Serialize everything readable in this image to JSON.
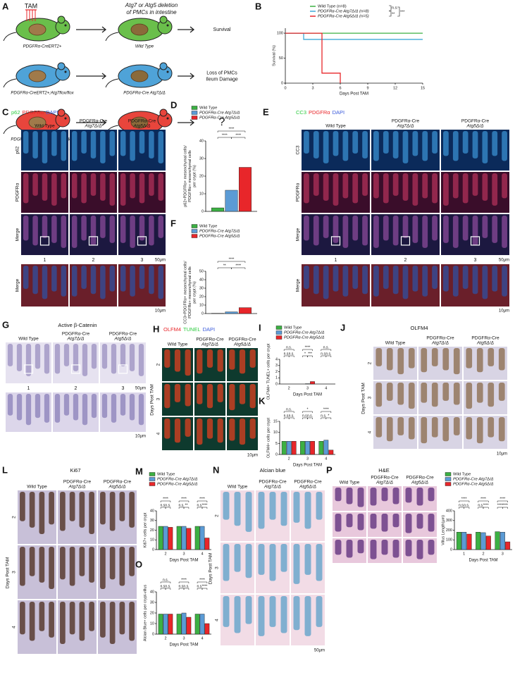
{
  "figure": {
    "A": {
      "label": "A",
      "tam": "TAM",
      "title": [
        "Atg7 or Atg5 deletion",
        "of PMCs in intestine"
      ],
      "rows": [
        {
          "genotype": "PDGFRα-CreERT2+",
          "result": "Wild Type",
          "outcome": [
            "Survival"
          ]
        },
        {
          "genotype": "PDGFRα-CreERT2+;Atg7flox/flox",
          "result": "PDGFRα-Cre Atg7Δ/Δ",
          "outcome": [
            "Loss of PMCs",
            "Ileum Damage"
          ]
        },
        {
          "genotype": "PDGFRα-CreERT2+;Atg5flox/flox",
          "result": "PDGFRα-Cre Atg5Δ/Δ",
          "outcome": [
            "?"
          ]
        }
      ]
    },
    "C": {
      "label": "C",
      "stain": [
        "p62",
        "PDGFRα",
        "DAPI"
      ],
      "stain_colors": [
        "#2ecc40",
        "#e8262a",
        "#3b5bdb"
      ],
      "columns": [
        [
          "Wild Type"
        ],
        [
          "PDGFRα-Cre",
          "Atg7Δ/Δ"
        ],
        [
          "PDGFRα-Cre",
          "Atg5Δ/Δ"
        ]
      ],
      "rows": [
        "p62",
        "PDGFRα",
        "Merge"
      ],
      "insets": [
        "1",
        "2",
        "3"
      ],
      "zoom_row": "Merge",
      "scale_bars": [
        "50μm",
        "10μm"
      ]
    },
    "E": {
      "label": "E",
      "stain": [
        "CC3",
        "PDGFRα",
        "DAPI"
      ],
      "stain_colors": [
        "#2ecc40",
        "#e8262a",
        "#3b5bdb"
      ],
      "columns": [
        [
          "Wild Type"
        ],
        [
          "PDGFRα-Cre",
          "Atg7Δ/Δ"
        ],
        [
          "PDGFRα-Cre",
          "Atg5Δ/Δ"
        ]
      ],
      "rows": [
        "CC3",
        "PDGFRα",
        "Merge"
      ],
      "insets": [
        "1",
        "2",
        "3"
      ],
      "zoom_row": "Merge",
      "scale_bars": [
        "50μm",
        "10μm"
      ]
    },
    "G": {
      "label": "G",
      "stain": "Active β-Catenin",
      "columns": [
        [
          "Wild Type"
        ],
        [
          "PDGFRα-Cre",
          "Atg7Δ/Δ"
        ],
        [
          "PDGFRα-Cre",
          "Atg5Δ/Δ"
        ]
      ],
      "insets": [
        "1",
        "2",
        "3"
      ],
      "scale_bars": [
        "50μm",
        "10μm"
      ]
    },
    "H": {
      "label": "H",
      "stain": [
        "OLFM4",
        "TUNEL",
        "DAPI"
      ],
      "stain_colors": [
        "#e8262a",
        "#2ecc40",
        "#3b5bdb"
      ],
      "columns": [
        [
          "Wild Type"
        ],
        [
          "PDGFRα-Cre",
          "Atg7Δ/Δ"
        ],
        [
          "PDGFRα-Cre",
          "Atg5Δ/Δ"
        ]
      ],
      "rows": [
        "2",
        "3",
        "4"
      ],
      "rows_title": "Days Post TAM",
      "scale_bars": [
        "10μm"
      ]
    },
    "J": {
      "label": "J",
      "stain": "OLFM4",
      "columns": [
        [
          "Wild Type"
        ],
        [
          "PDGFRα-Cre",
          "Atg7Δ/Δ"
        ],
        [
          "PDGFRα-Cre",
          "Atg5Δ/Δ"
        ]
      ],
      "rows": [
        "2",
        "3",
        "4"
      ],
      "rows_title": "Days Post TAM",
      "scale_bars": [
        "10μm"
      ]
    },
    "L": {
      "label": "L",
      "stain": "Ki67",
      "columns": [
        [
          "Wild Type"
        ],
        [
          "PDGFRα-Cre",
          "Atg7Δ/Δ"
        ],
        [
          "PDGFRα-Cre",
          "Atg5Δ/Δ"
        ]
      ],
      "rows": [
        "2",
        "3",
        "4"
      ],
      "rows_title": "Days Post TAM"
    },
    "N": {
      "label": "N",
      "stain": "Alcian blue",
      "columns": [
        [
          "Wild Type"
        ],
        [
          "PDGFRα-Cre",
          "Atg7Δ/Δ"
        ],
        [
          "PDGFRα-Cre",
          "Atg5Δ/Δ"
        ]
      ],
      "rows": [
        "2",
        "3",
        "4"
      ],
      "rows_title": "Days Post TAM",
      "scale_bars": [
        "50μm"
      ]
    },
    "P": {
      "label": "P",
      "stain": "H&E",
      "columns": [
        [
          "Wild Type"
        ],
        [
          "PDGFRα-Cre",
          "Atg7Δ/Δ"
        ],
        [
          "PDGFRα-Cre",
          "Atg5Δ/Δ"
        ]
      ],
      "tile_rows": 3
    }
  },
  "chart_data": [
    {
      "label": "B",
      "type": "line",
      "xlabel": "Days Post TAM",
      "ylabel": [
        "Survival (%)"
      ],
      "xlim": [
        0,
        15
      ],
      "xticks": [
        0,
        3,
        6,
        9,
        12,
        15
      ],
      "ylim": [
        0,
        110
      ],
      "yticks": [
        0,
        50,
        100
      ],
      "series": [
        {
          "name": "Wild Type (n=8)",
          "color": "#3cb043",
          "x": [
            0,
            15
          ],
          "values": [
            100,
            100
          ]
        },
        {
          "name": "PDGFRα-Cre Atg7Δ/Δ (n=8)",
          "color": "#3fa9d8",
          "x": [
            0,
            2,
            2,
            15
          ],
          "values": [
            100,
            100,
            87.5,
            87.5
          ]
        },
        {
          "name": "PDGFRα-Cre Atg5Δ/Δ (n=5)",
          "color": "#e8262a",
          "x": [
            0,
            4,
            4,
            6,
            6
          ],
          "values": [
            100,
            100,
            20,
            20,
            0
          ]
        }
      ],
      "annotations": [
        "n.s.",
        "**",
        "***"
      ]
    },
    {
      "label": "D",
      "type": "bar",
      "legend": "top",
      "ylabel": [
        "p62+PDGFRα+ mesenchymal cells/",
        "PDGFRα+ mesenchymal cells",
        "per crypt (%)"
      ],
      "categories": [
        null
      ],
      "ylim": [
        0,
        40
      ],
      "yticks": [
        0,
        10,
        20,
        30,
        40
      ],
      "series": [
        {
          "name": "Wild Type",
          "color": "#3cb043",
          "values": [
            2
          ]
        },
        {
          "name": "PDGFRα-Cre Atg7Δ/Δ",
          "color": "#5b9bd5",
          "values": [
            12
          ]
        },
        {
          "name": "PDGFRα-Cre Atg5Δ/Δ",
          "color": "#e8262a",
          "values": [
            25
          ]
        }
      ],
      "annotations": [
        "****",
        "****",
        "****"
      ]
    },
    {
      "label": "F",
      "type": "bar",
      "legend": "top",
      "ylabel": [
        "CC3+PDGFRα+ mesenchymal cells/",
        "PDGFRα+ mesenchymal cells",
        "per crypt (%)"
      ],
      "categories": [
        null
      ],
      "ylim": [
        0,
        50
      ],
      "yticks": [
        0,
        10,
        20,
        30,
        40,
        50
      ],
      "series": [
        {
          "name": "Wild Type",
          "color": "#3cb043",
          "values": [
            0.3
          ]
        },
        {
          "name": "PDGFRα-Cre Atg7Δ/Δ",
          "color": "#5b9bd5",
          "values": [
            2
          ]
        },
        {
          "name": "PDGFRα-Cre Atg5Δ/Δ",
          "color": "#e8262a",
          "values": [
            7
          ]
        }
      ],
      "annotations": [
        "**",
        "****",
        "****"
      ]
    },
    {
      "label": "I",
      "type": "bar",
      "legend": "top",
      "xlabel": "Days Post TAM",
      "ylabel": [
        "OLFM4+ TUNEL+ cells per crypt"
      ],
      "categories": [
        "2",
        "3",
        "4"
      ],
      "ylim": [
        0,
        4
      ],
      "yticks": [
        0,
        1,
        2,
        3,
        4
      ],
      "series": [
        {
          "name": "Wild Type",
          "color": "#3cb043",
          "values": [
            0,
            0,
            0
          ]
        },
        {
          "name": "PDGFRα-Cre Atg7Δ/Δ",
          "color": "#5b9bd5",
          "values": [
            0,
            0.05,
            0
          ]
        },
        {
          "name": "PDGFRα-Cre Atg5Δ/Δ",
          "color": "#e8262a",
          "values": [
            0,
            0.4,
            0
          ]
        }
      ],
      "annotations": [
        "n.s.",
        "n.s.",
        "n.s.",
        "*",
        "***",
        "****",
        "n.s.",
        "n.s.",
        "n.s."
      ]
    },
    {
      "label": "K",
      "type": "bar",
      "xlabel": "Days Post TAM",
      "ylabel": [
        "OLFM4+ cells per crypt"
      ],
      "categories": [
        "2",
        "3",
        "4"
      ],
      "ylim": [
        0,
        15
      ],
      "yticks": [
        0,
        5,
        10,
        15
      ],
      "series": [
        {
          "color": "#3cb043",
          "values": [
            6,
            6,
            6
          ]
        },
        {
          "color": "#5b9bd5",
          "values": [
            6,
            6,
            6.5
          ]
        },
        {
          "color": "#e8262a",
          "values": [
            6,
            6,
            2
          ]
        }
      ],
      "annotations": [
        "n.s.",
        "n.s.",
        "n.s.",
        "n.s.",
        "n.s.",
        "*",
        "n.s.",
        "*",
        "****"
      ]
    },
    {
      "label": "M",
      "type": "bar",
      "legend": "top",
      "xlabel": "Days Post TAM",
      "ylabel": [
        "Ki67+ cells per crypt"
      ],
      "categories": [
        "2",
        "3",
        "4"
      ],
      "ylim": [
        0,
        40
      ],
      "yticks": [
        0,
        10,
        20,
        30,
        40
      ],
      "series": [
        {
          "name": "Wild Type",
          "color": "#3cb043",
          "values": [
            24,
            24,
            24
          ]
        },
        {
          "name": "PDGFRα-Cre Atg7Δ/Δ",
          "color": "#5b9bd5",
          "values": [
            24,
            24,
            24
          ]
        },
        {
          "name": "PDGFRα-Cre Atg5Δ/Δ",
          "color": "#e8262a",
          "values": [
            23,
            22,
            12
          ]
        }
      ],
      "annotations": [
        "n.s.",
        "n.s.",
        "****",
        "n.s.",
        "**",
        "****",
        "n.s.",
        "****",
        "****"
      ]
    },
    {
      "label": "O",
      "type": "bar",
      "xlabel": "Days Post TAM",
      "ylabel": [
        "Alcian Blue+ cells per crypt-villus"
      ],
      "categories": [
        "2",
        "3",
        "4"
      ],
      "ylim": [
        0,
        40
      ],
      "yticks": [
        0,
        10,
        20,
        30,
        40
      ],
      "series": [
        {
          "color": "#3cb043",
          "values": [
            19,
            19,
            19
          ]
        },
        {
          "color": "#5b9bd5",
          "values": [
            19,
            20,
            19
          ]
        },
        {
          "color": "#e8262a",
          "values": [
            19,
            16,
            10
          ]
        }
      ],
      "annotations": [
        "n.s.",
        "n.s.",
        "n.s.",
        "n.s.",
        "n.s.",
        "****",
        "n.s.",
        "****",
        "****"
      ]
    },
    {
      "type": "bar",
      "legend": "top",
      "xlabel": "Days Post TAM",
      "ylabel": [
        "Villus Length(μm)"
      ],
      "categories": [
        "1",
        "2",
        "3"
      ],
      "ylim": [
        0,
        400
      ],
      "yticks": [
        0,
        100,
        200,
        300,
        400
      ],
      "series": [
        {
          "name": "Wild Type",
          "color": "#3cb043",
          "values": [
            180,
            180,
            185
          ]
        },
        {
          "name": "PDGFRα-Cre Atg7Δ/Δ",
          "color": "#5b9bd5",
          "values": [
            180,
            175,
            180
          ]
        },
        {
          "name": "PDGFRα-Cre Atg5Δ/Δ",
          "color": "#e8262a",
          "values": [
            160,
            140,
            80
          ]
        }
      ],
      "annotations": [
        "n.s.",
        "n.s.",
        "****",
        "n.s.",
        "****",
        "****",
        "****",
        "****",
        "****"
      ]
    }
  ]
}
